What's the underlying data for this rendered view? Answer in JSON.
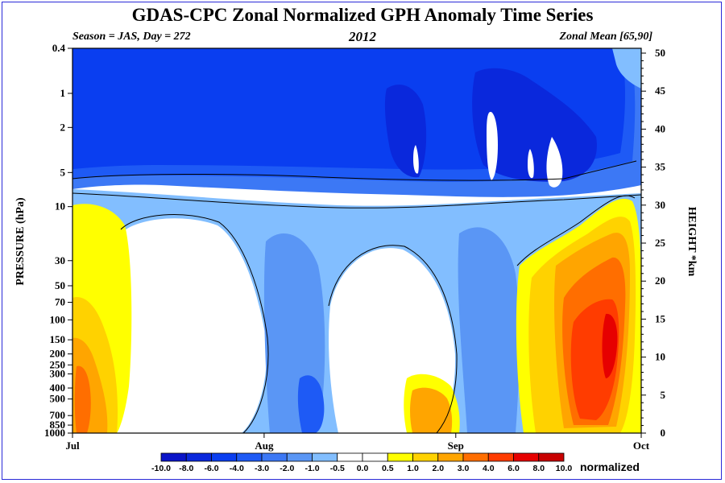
{
  "title": "GDAS-CPC Zonal Normalized GPH Anomaly Time Series",
  "subtitle_left": "Season = JAS, Day = 272",
  "subtitle_center": "2012",
  "subtitle_right": "Zonal Mean [65,90]",
  "chart_data": {
    "type": "heatmap",
    "title": "GDAS-CPC Zonal Normalized GPH Anomaly Time Series",
    "ylabel": "PRESSURE (hPa)",
    "ylabel_right": "HEIGHT *km",
    "x_ticks": [
      "Jul",
      "Aug",
      "Sep",
      "Oct"
    ],
    "y_ticks_pressure": [
      "0.4",
      "1",
      "2",
      "5",
      "10",
      "30",
      "50",
      "70",
      "100",
      "150",
      "200",
      "250",
      "300",
      "400",
      "500",
      "700",
      "850",
      "1000"
    ],
    "y_ticks_height": [
      "50",
      "45",
      "40",
      "35",
      "30",
      "25",
      "20",
      "15",
      "10",
      "5",
      "0"
    ],
    "y_scale": "log",
    "colorbar_label": "normalized",
    "colorbar_levels": [
      "-10.0",
      "-8.0",
      "-6.0",
      "-4.0",
      "-3.0",
      "-2.0",
      "-1.0",
      "-0.5",
      "0.0",
      "0.5",
      "1.0",
      "2.0",
      "3.0",
      "4.0",
      "6.0",
      "8.0",
      "10.0"
    ],
    "colorbar_colors": [
      "#0a14c8",
      "#0a28dc",
      "#0a3ef0",
      "#1e5af5",
      "#3c78f5",
      "#5a96f5",
      "#82beff",
      "#ffffff",
      "#ffffff",
      "#ffff00",
      "#ffd200",
      "#ffa500",
      "#ff6e00",
      "#ff3c00",
      "#e60000",
      "#c80000"
    ]
  }
}
